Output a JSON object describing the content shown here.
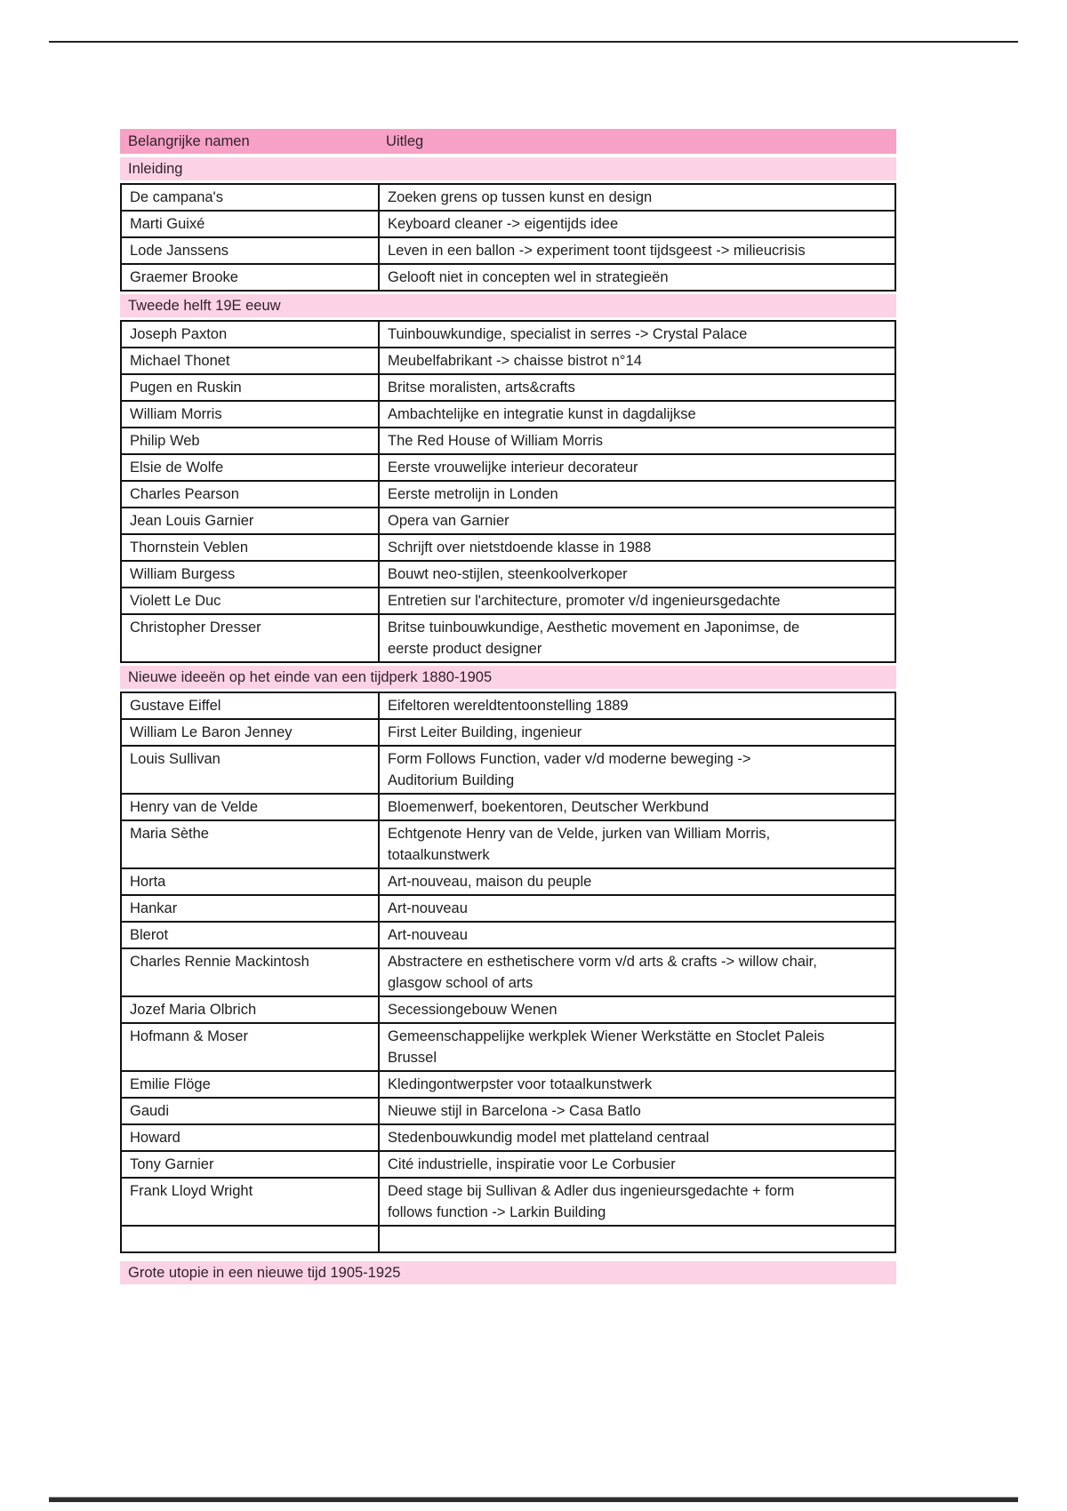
{
  "colors": {
    "header_pink": "#f8a1c6",
    "section_pink": "#fbd3e5",
    "border": "#121212",
    "text": "#1e1e1e",
    "heading_text": "#31222b"
  },
  "table": {
    "header": {
      "col1": "Belangrijke namen",
      "col2": "Uitleg"
    },
    "sections": [
      {
        "title": "Inleiding",
        "rows": [
          {
            "name": "De campana's",
            "uitleg": "Zoeken grens op tussen kunst en design"
          },
          {
            "name": "Marti Guixé",
            "uitleg": "Keyboard cleaner -> eigentijds idee"
          },
          {
            "name": "Lode Janssens",
            "uitleg": "Leven in een ballon -> experiment toont tijdsgeest -> milieucrisis"
          },
          {
            "name": "Graemer Brooke",
            "uitleg": "Gelooft niet in concepten wel in strategieën"
          }
        ]
      },
      {
        "title": "Tweede helft 19E eeuw",
        "rows": [
          {
            "name": "Joseph Paxton",
            "uitleg": "Tuinbouwkundige, specialist in serres -> Crystal Palace"
          },
          {
            "name": "Michael Thonet",
            "uitleg": "Meubelfabrikant -> chaisse bistrot n°14"
          },
          {
            "name": "Pugen en Ruskin",
            "uitleg": "Britse moralisten, arts&crafts"
          },
          {
            "name": "William Morris",
            "uitleg": "Ambachtelijke en integratie kunst in dagdalijkse"
          },
          {
            "name": "Philip Web",
            "uitleg": "The Red House of William Morris"
          },
          {
            "name": "Elsie de Wolfe",
            "uitleg": "Eerste vrouwelijke interieur decorateur"
          },
          {
            "name": "Charles Pearson",
            "uitleg": "Eerste metrolijn in Londen"
          },
          {
            "name": "Jean Louis Garnier",
            "uitleg": "Opera van Garnier"
          },
          {
            "name": "Thornstein Veblen",
            "uitleg": "Schrijft over nietstdoende klasse in 1988"
          },
          {
            "name": "William Burgess",
            "uitleg": "Bouwt neo-stijlen, steenkoolverkoper"
          },
          {
            "name": "Violett Le Duc",
            "uitleg": "Entretien sur l'architecture, promoter v/d ingenieursgedachte"
          },
          {
            "name": "Christopher Dresser",
            "uitleg": "Britse tuinbouwkundige, Aesthetic movement en Japonimse, de\neerste product designer"
          }
        ]
      },
      {
        "title": "Nieuwe ideeën op het einde van een tijdperk 1880-1905",
        "rows": [
          {
            "name": "Gustave Eiffel",
            "uitleg": "Eifeltoren wereldtentoonstelling 1889"
          },
          {
            "name": "William Le Baron Jenney",
            "uitleg": "First Leiter Building, ingenieur"
          },
          {
            "name": "Louis Sullivan",
            "uitleg": "Form Follows Function, vader v/d moderne beweging ->\nAuditorium Building"
          },
          {
            "name": "Henry van de Velde",
            "uitleg": "Bloemenwerf, boekentoren, Deutscher Werkbund"
          },
          {
            "name": "Maria Sèthe",
            "uitleg": "Echtgenote Henry van de Velde, jurken van William Morris,\ntotaalkunstwerk"
          },
          {
            "name": "Horta",
            "uitleg": "Art-nouveau, maison du peuple"
          },
          {
            "name": "Hankar",
            "uitleg": "Art-nouveau"
          },
          {
            "name": "Blerot",
            "uitleg": "Art-nouveau"
          },
          {
            "name": "Charles Rennie Mackintosh",
            "uitleg": "Abstractere en esthetischere vorm v/d arts & crafts -> willow chair,\nglasgow school of arts"
          },
          {
            "name": "Jozef Maria Olbrich",
            "uitleg": "Secessiongebouw Wenen"
          },
          {
            "name": "Hofmann & Moser",
            "uitleg": "Gemeenschappelijke werkplek Wiener Werkstätte en Stoclet Paleis\nBrussel"
          },
          {
            "name": "Emilie Flöge",
            "uitleg": "Kledingontwerpster voor totaalkunstwerk"
          },
          {
            "name": "Gaudi",
            "uitleg": "Nieuwe stijl in Barcelona -> Casa Batlo"
          },
          {
            "name": "Howard",
            "uitleg": "Stedenbouwkundig model met platteland centraal"
          },
          {
            "name": "Tony Garnier",
            "uitleg": "Cité industrielle, inspiratie voor Le Corbusier"
          },
          {
            "name": "Frank Lloyd Wright",
            "uitleg": "Deed stage bij Sullivan & Adler dus ingenieursgedachte + form\nfollows function -> Larkin Building"
          },
          {
            "name": "",
            "uitleg": ""
          }
        ]
      },
      {
        "title": "Grote utopie in een nieuwe tijd 1905-1925",
        "rows": []
      }
    ]
  }
}
